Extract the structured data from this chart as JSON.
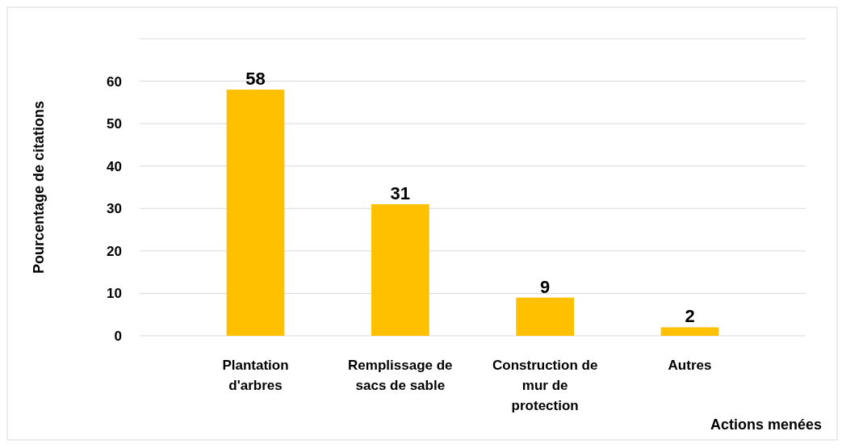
{
  "chart_data": {
    "type": "bar",
    "xlabel": "Actions menées",
    "ylabel": "Pourcentage de citations",
    "categories": [
      "Plantation d'arbres",
      "Remplissage de sacs de sable",
      "Construction de mur de protection",
      "Autres"
    ],
    "values": [
      58,
      31,
      9,
      2
    ],
    "color": "#ffc000",
    "ylim": [
      0,
      70
    ],
    "yticks": [
      0,
      10,
      20,
      30,
      40,
      50,
      60,
      {
        "value": 70,
        "label": null
      }
    ],
    "grid": "y",
    "data_labels": true
  }
}
